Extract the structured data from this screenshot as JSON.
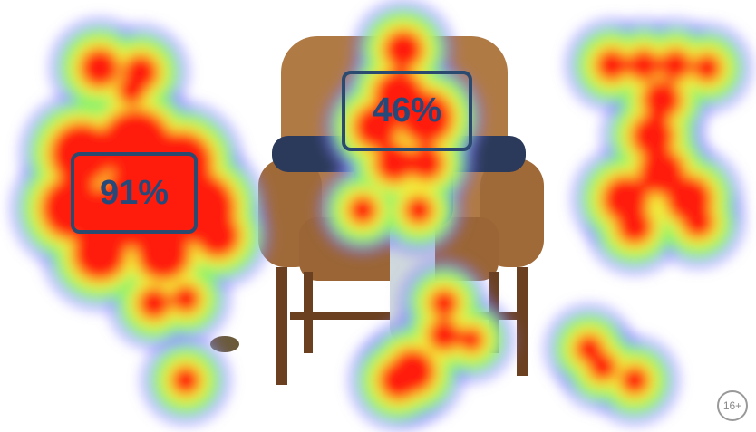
{
  "labels": [
    {
      "text": "91%"
    },
    {
      "text": "46%"
    }
  ],
  "badge": "16+"
}
